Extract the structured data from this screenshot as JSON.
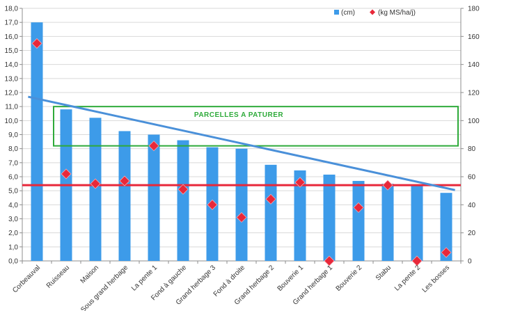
{
  "chart_data": {
    "type": "bar",
    "categories": [
      "Corbeauval",
      "Ruisseau",
      "Maison",
      "Sous grand herbage",
      "La pente 1",
      "Fond à gauche",
      "Grand herbage 3",
      "Fond à droite",
      "Grand herbage 2",
      "Bouverie 1",
      "Grand herbage 1",
      "Bouverie 2",
      "Stabu",
      "La pente 2",
      "Les bosses"
    ],
    "series": [
      {
        "name": "(cm)",
        "type": "bar",
        "axis": "left",
        "color": "#3d9be9",
        "values": [
          17.0,
          10.8,
          10.2,
          9.25,
          9.0,
          8.6,
          8.1,
          8.0,
          6.85,
          6.45,
          6.15,
          5.7,
          5.5,
          5.35,
          4.85
        ]
      },
      {
        "name": "(kg MS/ha/j)",
        "type": "scatter",
        "marker": "diamond",
        "axis": "right",
        "color": "#e8283a",
        "values": [
          155,
          62,
          55,
          57,
          82,
          51,
          40,
          31,
          44,
          56,
          0,
          38,
          54,
          0,
          6
        ]
      }
    ],
    "y_left": {
      "min": 0,
      "max": 18,
      "step": 1,
      "tick_labels": [
        "0,0",
        "1,0",
        "2,0",
        "3,0",
        "4,0",
        "5,0",
        "6,0",
        "7,0",
        "8,0",
        "9,0",
        "10,0",
        "11,0",
        "12,0",
        "13,0",
        "14,0",
        "15,0",
        "16,0",
        "17,0",
        "18,0"
      ]
    },
    "y_right": {
      "min": 0,
      "max": 180,
      "step": 20,
      "tick_labels": [
        "0",
        "20",
        "40",
        "60",
        "80",
        "100",
        "120",
        "140",
        "160",
        "180"
      ]
    },
    "grid": "horizontal",
    "legend": {
      "position": "top-right",
      "entries": [
        "(cm)",
        "(kg MS/ha/j)"
      ]
    },
    "trend_line": {
      "color": "#4a90d9",
      "axis": "left",
      "start": {
        "category": "Corbeauval",
        "value": 11.7
      },
      "end": {
        "category": "Les bosses",
        "value": 5.05
      }
    },
    "horizontal_line": {
      "color": "#e8283a",
      "axis": "left",
      "value": 5.4
    },
    "annotation": {
      "text": "PARCELLES    A    PATURER",
      "color": "#2eaa3a",
      "from_category": "Ruisseau",
      "to_category": "Les bosses",
      "y_top": 11.0,
      "y_bottom": 8.2
    }
  }
}
